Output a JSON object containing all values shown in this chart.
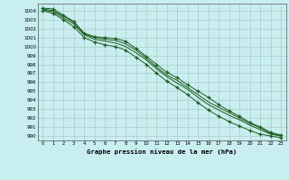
{
  "title": "Graphe pression niveau de la mer (hPa)",
  "background_color": "#c8eef0",
  "grid_color": "#b0c8c8",
  "line_color": "#1a5c1a",
  "xlim": [
    -0.5,
    23.5
  ],
  "ylim": [
    989.5,
    1004.8
  ],
  "x_ticks": [
    0,
    1,
    2,
    3,
    4,
    5,
    6,
    7,
    8,
    9,
    10,
    11,
    12,
    13,
    14,
    15,
    16,
    17,
    18,
    19,
    20,
    21,
    22,
    23
  ],
  "y_ticks": [
    990,
    991,
    992,
    993,
    994,
    995,
    996,
    997,
    998,
    999,
    1000,
    1001,
    1002,
    1003,
    1004
  ],
  "series": [
    [
      1004.3,
      1004.2,
      1003.5,
      1002.8,
      1001.5,
      1001.1,
      1001.0,
      1000.9,
      1000.6,
      999.8,
      998.9,
      998.0,
      997.1,
      996.5,
      995.7,
      995.0,
      994.3,
      993.5,
      992.8,
      992.2,
      991.5,
      991.0,
      990.4,
      990.1
    ],
    [
      1004.1,
      1003.9,
      1003.2,
      1002.5,
      1001.3,
      1000.8,
      1000.6,
      1000.4,
      1000.0,
      999.3,
      998.5,
      997.5,
      996.6,
      995.9,
      995.2,
      994.3,
      993.5,
      992.9,
      992.3,
      991.8,
      991.2,
      990.7,
      990.2,
      990.0
    ],
    [
      1004.2,
      1004.0,
      1003.4,
      1002.7,
      1001.4,
      1001.0,
      1000.8,
      1000.7,
      1000.3,
      999.6,
      998.7,
      997.7,
      996.8,
      996.2,
      995.4,
      994.6,
      993.8,
      993.2,
      992.6,
      992.0,
      991.4,
      990.9,
      990.3,
      990.0
    ],
    [
      1004.0,
      1003.7,
      1003.0,
      1002.2,
      1001.0,
      1000.5,
      1000.2,
      1000.0,
      999.6,
      998.8,
      998.0,
      997.0,
      996.1,
      995.4,
      994.6,
      993.7,
      992.9,
      992.2,
      991.6,
      991.1,
      990.6,
      990.2,
      990.0,
      989.8
    ]
  ],
  "marker_series": [
    0,
    3
  ],
  "marker": "+",
  "marker_size": 3.5,
  "marker_lw": 0.9
}
